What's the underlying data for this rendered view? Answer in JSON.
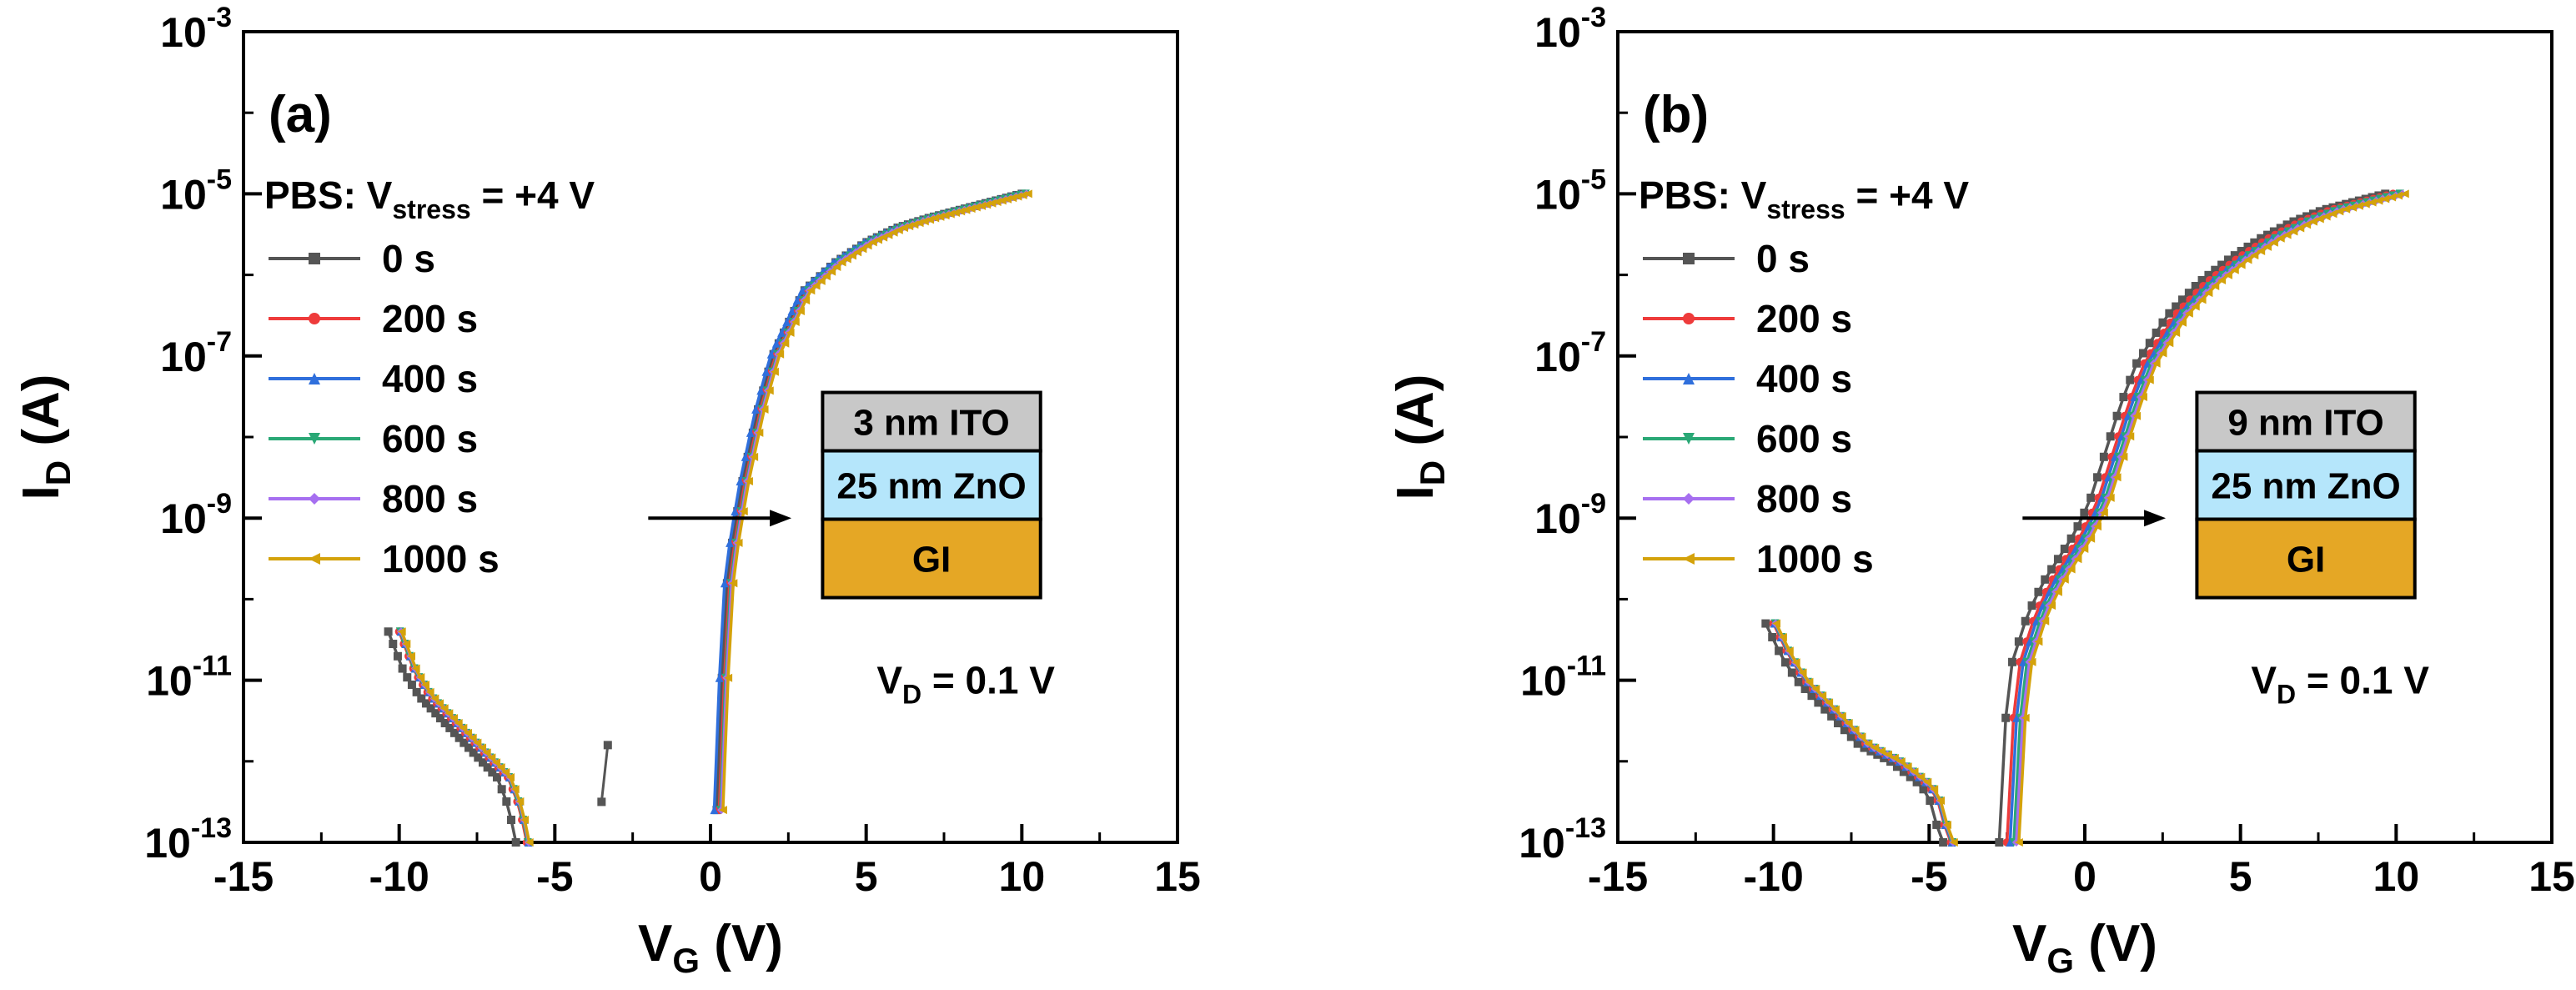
{
  "chart_data": [
    {
      "type": "line",
      "panel_label": "(a)",
      "legend_title": {
        "prefix": "PBS: V",
        "sub": "stress",
        "suffix": " = +4 V"
      },
      "xlabel": {
        "main": "V",
        "sub": "G",
        "unit": " (V)"
      },
      "ylabel": {
        "main": "I",
        "sub": "D",
        "unit": " (A)"
      },
      "xlim": [
        -15,
        15
      ],
      "ylim_log10": [
        -13,
        -3
      ],
      "x_ticks": [
        {
          "v": -15,
          "label": "-15"
        },
        {
          "v": -10,
          "label": "-10"
        },
        {
          "v": -5,
          "label": "-5"
        },
        {
          "v": 0,
          "label": "0"
        },
        {
          "v": 5,
          "label": "5"
        },
        {
          "v": 10,
          "label": "10"
        },
        {
          "v": 15,
          "label": "15"
        }
      ],
      "y_ticks": [
        {
          "exp": -13,
          "base": "10",
          "sup": "-13"
        },
        {
          "exp": -11,
          "base": "10",
          "sup": "-11"
        },
        {
          "exp": -9,
          "base": "10",
          "sup": "-9"
        },
        {
          "exp": -7,
          "base": "10",
          "sup": "-7"
        },
        {
          "exp": -5,
          "base": "10",
          "sup": "-5"
        },
        {
          "exp": -3,
          "base": "10",
          "sup": "-3"
        }
      ],
      "annotation_vd": {
        "prefix": "V",
        "sub": "D",
        "suffix": " = 0.1 V"
      },
      "stack": [
        "3 nm ITO",
        "25 nm ZnO",
        "GI"
      ],
      "series": [
        {
          "name": "0 s",
          "color": "#555555",
          "marker": "square",
          "shift": 0.0,
          "off_shift": -0.35
        },
        {
          "name": "200 s",
          "color": "#ee3b3b",
          "marker": "circle",
          "shift": 0.08,
          "off_shift": 0.0
        },
        {
          "name": "400 s",
          "color": "#2f6fdc",
          "marker": "triangle-up",
          "shift": -0.08,
          "off_shift": 0.05
        },
        {
          "name": "600 s",
          "color": "#2aa876",
          "marker": "triangle-down",
          "shift": 0.12,
          "off_shift": 0.03
        },
        {
          "name": "800 s",
          "color": "#a66ff0",
          "marker": "diamond",
          "shift": 0.15,
          "off_shift": 0.06
        },
        {
          "name": "1000 s",
          "color": "#d4a20b",
          "marker": "triangle-left",
          "shift": 0.2,
          "off_shift": 0.08
        }
      ],
      "on_branch": {
        "x": [
          0.2,
          0.3,
          0.5,
          0.7,
          1.0,
          1.5,
          2.0,
          3.0,
          4.0,
          5.0,
          6.0,
          7.0,
          8.0,
          9.0,
          10.0
        ],
        "log10_y": [
          -12.6,
          -11.5,
          -9.9,
          -9.3,
          -8.6,
          -7.7,
          -7.0,
          -6.2,
          -5.85,
          -5.6,
          -5.42,
          -5.3,
          -5.2,
          -5.1,
          -5.0
        ]
      },
      "off_branch": {
        "x": [
          -10.0,
          -9.5,
          -9.0,
          -8.5,
          -8.0,
          -7.5,
          -7.0,
          -6.5,
          -6.2,
          -6.0,
          -5.9
        ],
        "log10_y": [
          -10.4,
          -10.9,
          -11.2,
          -11.4,
          -11.6,
          -11.8,
          -12.0,
          -12.2,
          -12.5,
          -12.8,
          -13.0
        ]
      },
      "extra_points": {
        "x": [
          -3.5,
          -3.3
        ],
        "log10_y": [
          -12.5,
          -11.8
        ]
      }
    },
    {
      "type": "line",
      "panel_label": "(b)",
      "legend_title": {
        "prefix": "PBS: V",
        "sub": "stress",
        "suffix": " = +4 V"
      },
      "xlabel": {
        "main": "V",
        "sub": "G",
        "unit": " (V)"
      },
      "ylabel": {
        "main": "I",
        "sub": "D",
        "unit": " (A)"
      },
      "xlim": [
        -15,
        15
      ],
      "ylim_log10": [
        -13,
        -3
      ],
      "x_ticks": [
        {
          "v": -15,
          "label": "-15"
        },
        {
          "v": -10,
          "label": "-10"
        },
        {
          "v": -5,
          "label": "-5"
        },
        {
          "v": 0,
          "label": "0"
        },
        {
          "v": 5,
          "label": "5"
        },
        {
          "v": 10,
          "label": "10"
        },
        {
          "v": 15,
          "label": "15"
        }
      ],
      "y_ticks": [
        {
          "exp": -13,
          "base": "10",
          "sup": "-13"
        },
        {
          "exp": -11,
          "base": "10",
          "sup": "-11"
        },
        {
          "exp": -9,
          "base": "10",
          "sup": "-9"
        },
        {
          "exp": -7,
          "base": "10",
          "sup": "-7"
        },
        {
          "exp": -5,
          "base": "10",
          "sup": "-5"
        },
        {
          "exp": -3,
          "base": "10",
          "sup": "-3"
        }
      ],
      "annotation_vd": {
        "prefix": "V",
        "sub": "D",
        "suffix": " = 0.1 V"
      },
      "stack": [
        "9 nm ITO",
        "25 nm ZnO",
        "GI"
      ],
      "series": [
        {
          "name": "0 s",
          "color": "#555555",
          "marker": "square",
          "shift": -0.35,
          "off_shift": -0.25
        },
        {
          "name": "200 s",
          "color": "#ee3b3b",
          "marker": "circle",
          "shift": -0.1,
          "off_shift": 0.0
        },
        {
          "name": "400 s",
          "color": "#2f6fdc",
          "marker": "triangle-up",
          "shift": 0.0,
          "off_shift": 0.03
        },
        {
          "name": "600 s",
          "color": "#2aa876",
          "marker": "triangle-down",
          "shift": 0.12,
          "off_shift": 0.05
        },
        {
          "name": "800 s",
          "color": "#a66ff0",
          "marker": "diamond",
          "shift": 0.2,
          "off_shift": 0.07
        },
        {
          "name": "1000 s",
          "color": "#d4a20b",
          "marker": "triangle-left",
          "shift": 0.28,
          "off_shift": 0.09
        }
      ],
      "on_branch": {
        "x": [
          -2.4,
          -2.2,
          -2.0,
          -1.5,
          -1.0,
          -0.5,
          0.0,
          0.5,
          1.0,
          1.5,
          2.0,
          3.0,
          4.0,
          5.0,
          6.0,
          7.0,
          8.0,
          9.0,
          10.0
        ],
        "log10_y": [
          -13.0,
          -11.5,
          -10.8,
          -10.2,
          -9.8,
          -9.5,
          -9.2,
          -8.8,
          -8.2,
          -7.6,
          -7.1,
          -6.5,
          -6.1,
          -5.8,
          -5.55,
          -5.35,
          -5.2,
          -5.1,
          -5.0
        ]
      },
      "off_branch": {
        "x": [
          -10.0,
          -9.5,
          -9.0,
          -8.5,
          -8.0,
          -7.5,
          -7.0,
          -6.5,
          -6.0,
          -5.5,
          -5.0,
          -4.7,
          -4.5,
          -4.3
        ],
        "log10_y": [
          -10.3,
          -10.7,
          -11.0,
          -11.2,
          -11.4,
          -11.6,
          -11.8,
          -11.9,
          -12.0,
          -12.15,
          -12.3,
          -12.5,
          -12.8,
          -13.0
        ]
      },
      "extra_points": {
        "x": [],
        "log10_y": []
      }
    }
  ]
}
